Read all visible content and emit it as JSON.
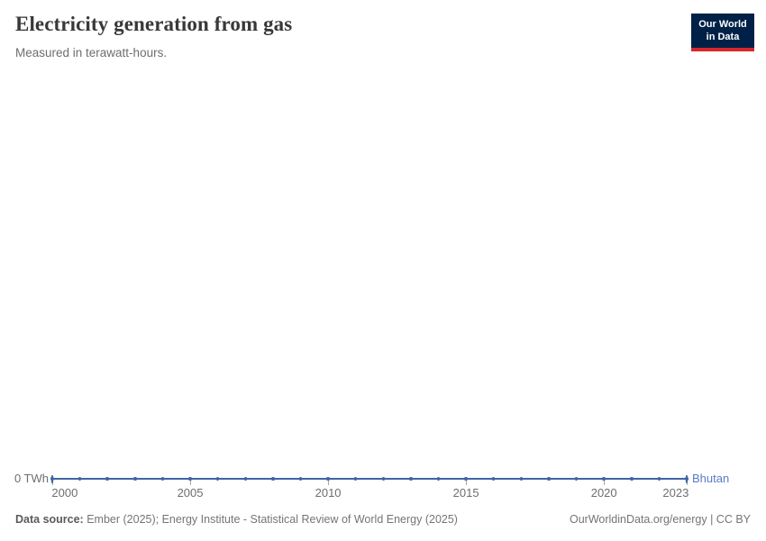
{
  "header": {
    "title": "Electricity generation from gas",
    "subtitle": "Measured in terawatt-hours.",
    "logo": {
      "line1": "Our World",
      "line2": "in Data"
    }
  },
  "chart_data": {
    "type": "line",
    "title": "Electricity generation from gas",
    "unit": "terawatt-hours",
    "x": [
      2000,
      2001,
      2002,
      2003,
      2004,
      2005,
      2006,
      2007,
      2008,
      2009,
      2010,
      2011,
      2012,
      2013,
      2014,
      2015,
      2016,
      2017,
      2018,
      2019,
      2020,
      2021,
      2022,
      2023
    ],
    "series": [
      {
        "name": "Bhutan",
        "values": [
          0,
          0,
          0,
          0,
          0,
          0,
          0,
          0,
          0,
          0,
          0,
          0,
          0,
          0,
          0,
          0,
          0,
          0,
          0,
          0,
          0,
          0,
          0,
          0
        ]
      }
    ],
    "x_tick_labels": [
      "2000",
      "2005",
      "2010",
      "2015",
      "2020",
      "2023"
    ],
    "y_zero_label": "0 TWh",
    "ylim": [
      0,
      0
    ],
    "grid": false,
    "legend_position": "right-of-line-end"
  },
  "series_label": "Bhutan",
  "footer": {
    "source_label": "Data source:",
    "source_text": " Ember (2025); Energy Institute - Statistical Review of World Energy (2025)",
    "right_text": "OurWorldinData.org/energy | CC BY"
  },
  "colors": {
    "line": "#4165a5",
    "series_label": "#5b7ac8",
    "logo_bg": "#002147",
    "logo_accent": "#d8262c",
    "title": "#383838",
    "muted_text": "#6e6e6e",
    "footer_text": "#757575"
  }
}
